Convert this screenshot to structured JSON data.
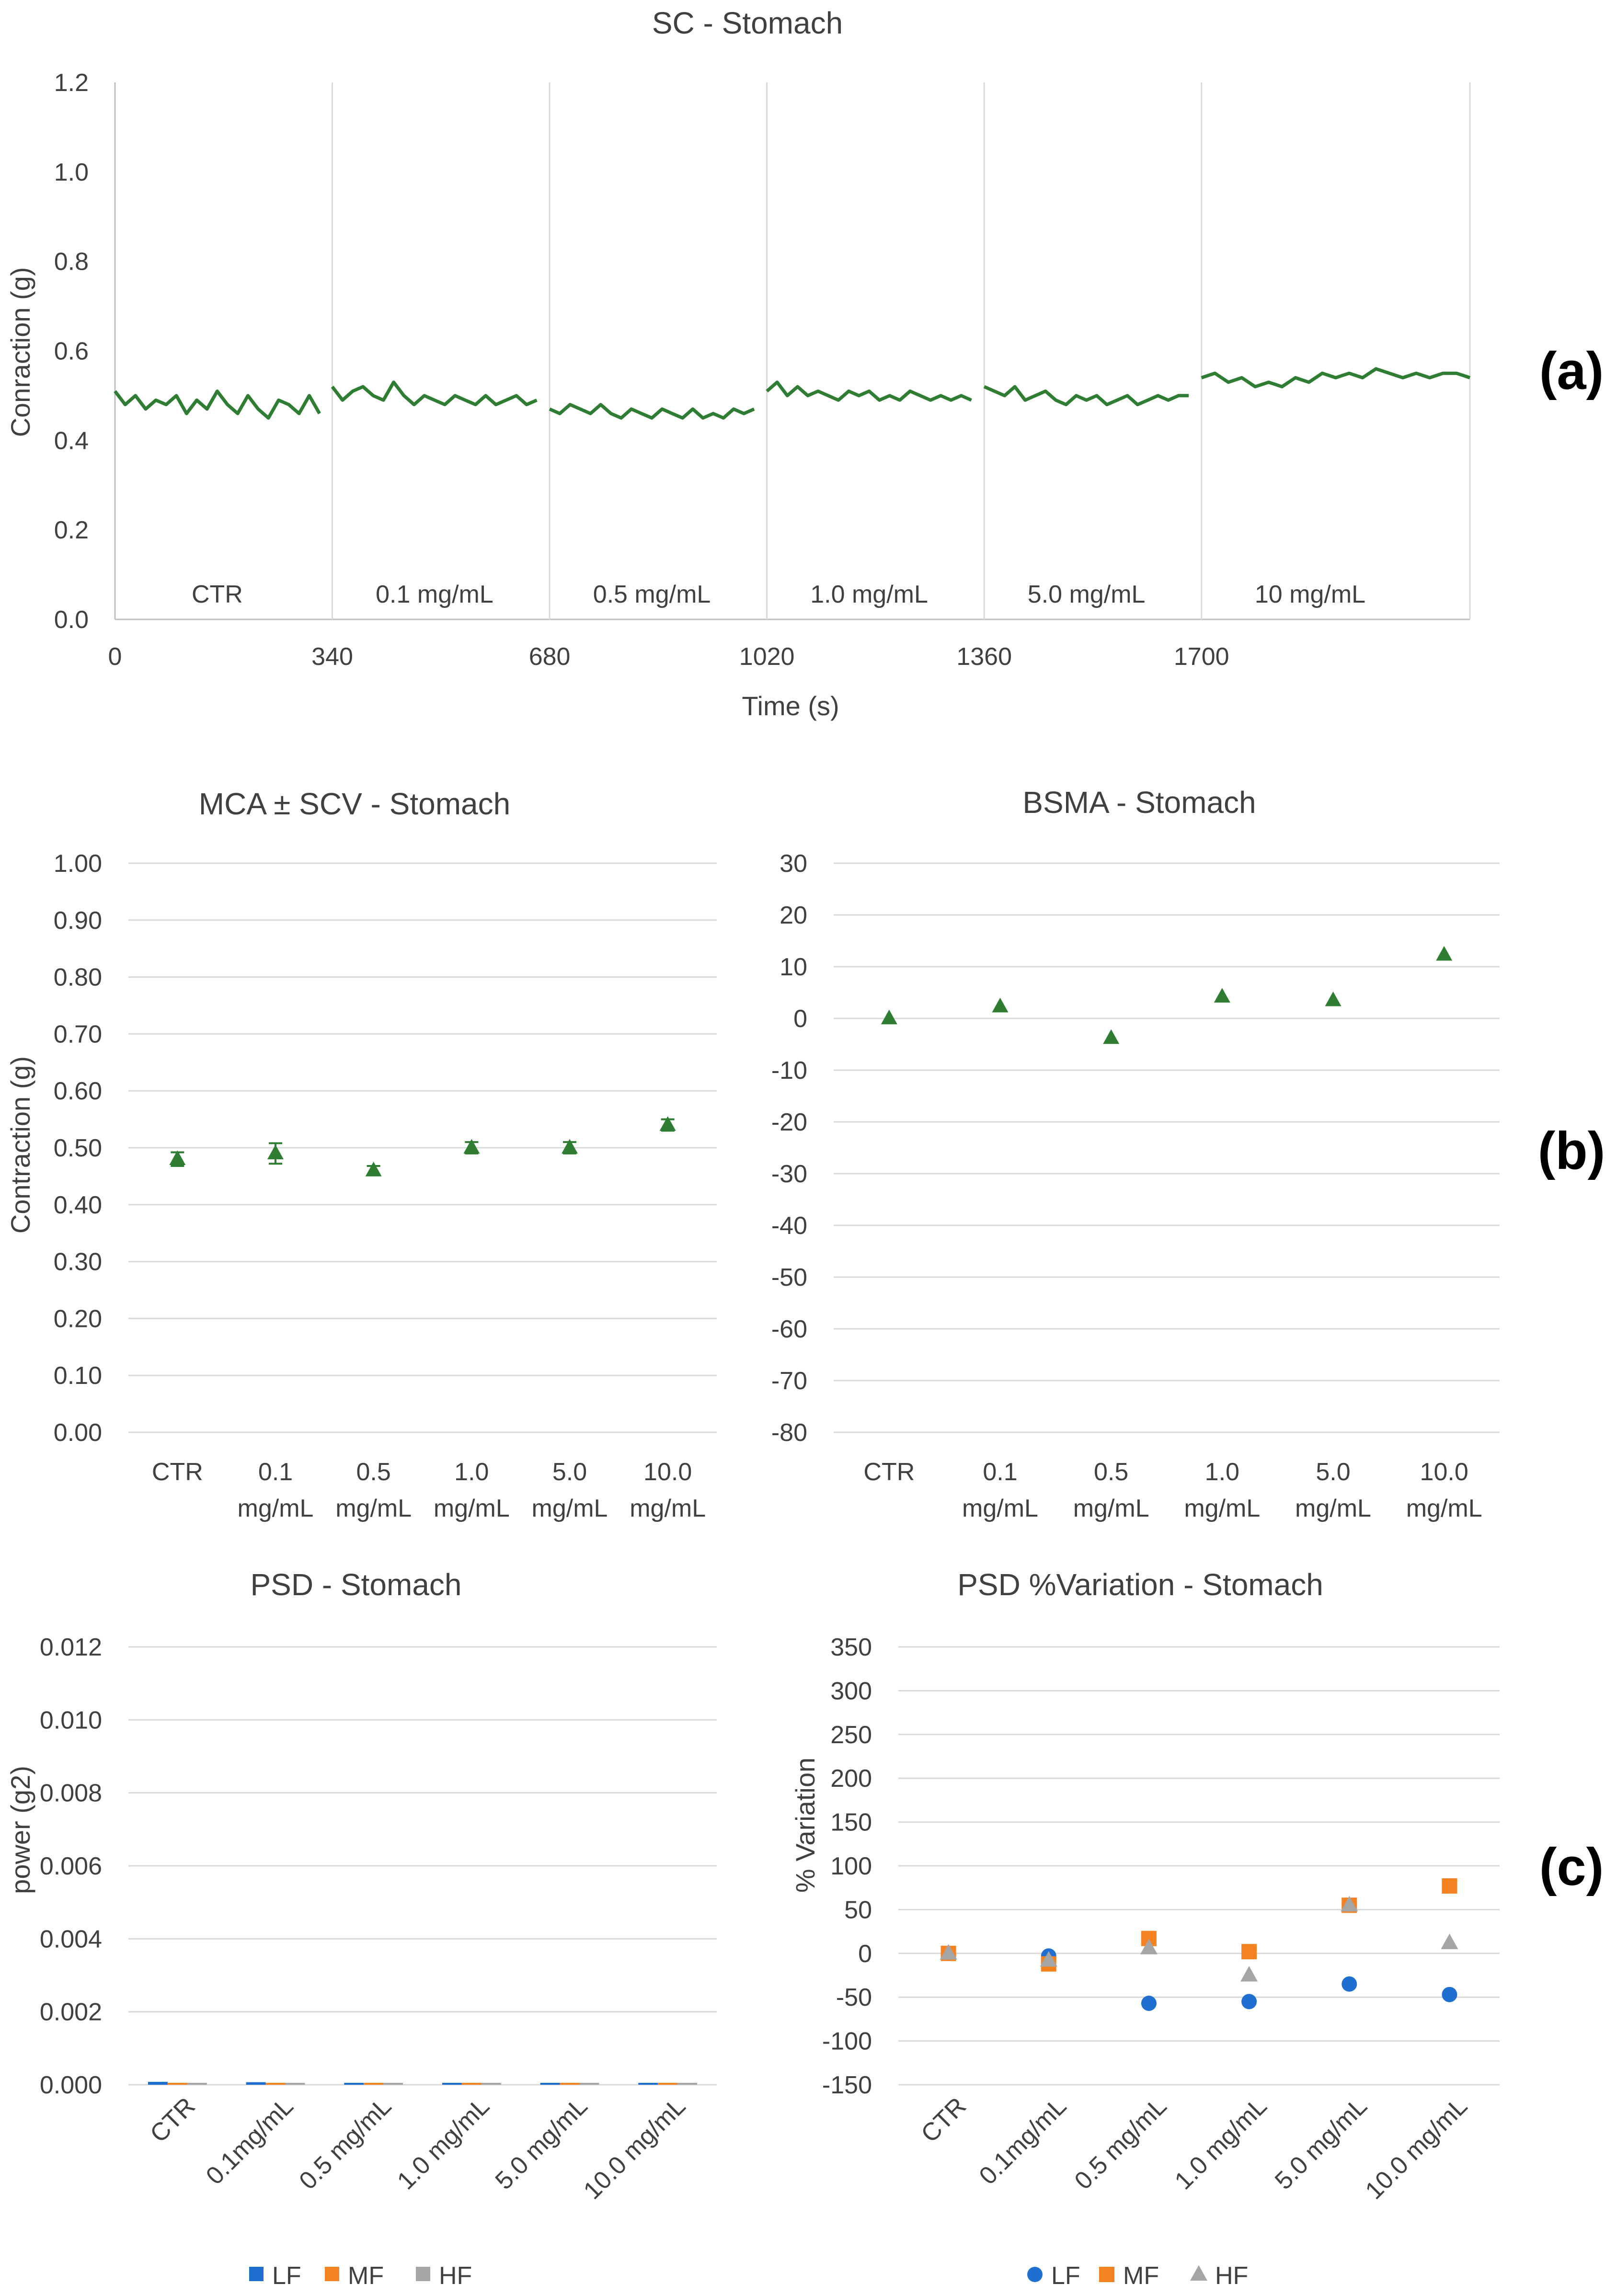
{
  "chart_data": [
    {
      "id": "sc",
      "type": "line",
      "title": "SC - Stomach",
      "xlabel": "Time (s)",
      "ylabel": "Conraction (g)",
      "panel": "(a)",
      "ylim": [
        0,
        1.2
      ],
      "xlim": [
        0,
        2120
      ],
      "y_ticks": [
        "0.0",
        "0.2",
        "0.4",
        "0.6",
        "0.8",
        "1.0",
        "1.2"
      ],
      "x_ticks": [
        "0",
        "340",
        "680",
        "1020",
        "1360",
        "1700"
      ],
      "grid": "vertical separators",
      "segments": [
        {
          "label": "CTR",
          "start": 0,
          "end": 320,
          "values": [
            0.51,
            0.48,
            0.5,
            0.47,
            0.49,
            0.48,
            0.5,
            0.46,
            0.49,
            0.47,
            0.51,
            0.48,
            0.46,
            0.5,
            0.47,
            0.45,
            0.49,
            0.48,
            0.46,
            0.5,
            0.46
          ]
        },
        {
          "label": "0.1 mg/mL",
          "start": 340,
          "end": 660,
          "values": [
            0.52,
            0.49,
            0.51,
            0.52,
            0.5,
            0.49,
            0.53,
            0.5,
            0.48,
            0.5,
            0.49,
            0.48,
            0.5,
            0.49,
            0.48,
            0.5,
            0.48,
            0.49,
            0.5,
            0.48,
            0.49
          ]
        },
        {
          "label": "0.5 mg/mL",
          "start": 680,
          "end": 1000,
          "values": [
            0.47,
            0.46,
            0.48,
            0.47,
            0.46,
            0.48,
            0.46,
            0.45,
            0.47,
            0.46,
            0.45,
            0.47,
            0.46,
            0.45,
            0.47,
            0.45,
            0.46,
            0.45,
            0.47,
            0.46,
            0.47
          ]
        },
        {
          "label": "1.0 mg/mL",
          "start": 1020,
          "end": 1340,
          "values": [
            0.51,
            0.53,
            0.5,
            0.52,
            0.5,
            0.51,
            0.5,
            0.49,
            0.51,
            0.5,
            0.51,
            0.49,
            0.5,
            0.49,
            0.51,
            0.5,
            0.49,
            0.5,
            0.49,
            0.5,
            0.49
          ]
        },
        {
          "label": "5.0 mg/mL",
          "start": 1360,
          "end": 1680,
          "values": [
            0.52,
            0.51,
            0.5,
            0.52,
            0.49,
            0.5,
            0.51,
            0.49,
            0.48,
            0.5,
            0.49,
            0.5,
            0.48,
            0.49,
            0.5,
            0.48,
            0.49,
            0.5,
            0.49,
            0.5,
            0.5
          ]
        },
        {
          "label": "10 mg/mL",
          "start": 1700,
          "end": 2120,
          "values": [
            0.54,
            0.55,
            0.53,
            0.54,
            0.52,
            0.53,
            0.52,
            0.54,
            0.53,
            0.55,
            0.54,
            0.55,
            0.54,
            0.56,
            0.55,
            0.54,
            0.55,
            0.54,
            0.55,
            0.55,
            0.54
          ]
        }
      ],
      "color": "#2e7d32"
    },
    {
      "id": "mca",
      "type": "scatter",
      "title": "MCA ± SCV - Stomach",
      "ylabel": "Contraction (g)",
      "panel": "(b)",
      "ylim": [
        0,
        1
      ],
      "y_ticks": [
        "0.00",
        "0.10",
        "0.20",
        "0.30",
        "0.40",
        "0.50",
        "0.60",
        "0.70",
        "0.80",
        "0.90",
        "1.00"
      ],
      "categories": [
        "CTR",
        "0.1\nmg/mL",
        "0.5\nmg/mL",
        "1.0\nmg/mL",
        "5.0\nmg/mL",
        "10.0\nmg/mL"
      ],
      "values": [
        0.48,
        0.49,
        0.46,
        0.5,
        0.5,
        0.54
      ],
      "errors": [
        0.012,
        0.018,
        0.008,
        0.01,
        0.01,
        0.01
      ],
      "marker": "triangle",
      "color": "#2e7d32"
    },
    {
      "id": "bsma",
      "type": "scatter",
      "title": "BSMA - Stomach",
      "ylabel": "",
      "ylim": [
        -80,
        30
      ],
      "y_ticks": [
        "-80",
        "-70",
        "-60",
        "-50",
        "-40",
        "-30",
        "-20",
        "-10",
        "0",
        "10",
        "20",
        "30"
      ],
      "categories": [
        "CTR",
        "0.1\nmg/mL",
        "0.5\nmg/mL",
        "1.0\nmg/mL",
        "5.0\nmg/mL",
        "10.0\nmg/mL"
      ],
      "values": [
        0,
        2.3,
        -3.8,
        4.2,
        3.5,
        12.3
      ],
      "marker": "triangle",
      "color": "#2e7d32"
    },
    {
      "id": "psd",
      "type": "bar",
      "title": "PSD - Stomach",
      "ylabel": "power (g2)",
      "panel": "(c)",
      "ylim": [
        0,
        0.012
      ],
      "y_ticks": [
        "0.000",
        "0.002",
        "0.004",
        "0.006",
        "0.008",
        "0.010",
        "0.012"
      ],
      "categories": [
        "CTR",
        "0.1mg/mL",
        "0.5 mg/mL",
        "1.0 mg/mL",
        "5.0 mg/mL",
        "10.0 mg/mL"
      ],
      "series": [
        {
          "name": "LF",
          "color": "#1f6fd1",
          "values": [
            8e-05,
            7e-05,
            3e-05,
            2e-05,
            4e-05,
            3e-05
          ]
        },
        {
          "name": "MF",
          "color": "#f58220",
          "values": [
            1e-05,
            1e-05,
            1e-05,
            1e-05,
            1e-05,
            1e-05
          ]
        },
        {
          "name": "HF",
          "color": "#a5a5a5",
          "values": [
            5e-06,
            5e-06,
            5e-06,
            4e-06,
            6e-06,
            5e-06
          ]
        }
      ]
    },
    {
      "id": "psdvar",
      "type": "scatter",
      "title": "PSD %Variation - Stomach",
      "ylabel": "% Variation",
      "ylim": [
        -150,
        350
      ],
      "y_ticks": [
        "-150",
        "-100",
        "-50",
        "0",
        "50",
        "100",
        "150",
        "200",
        "250",
        "300",
        "350"
      ],
      "categories": [
        "CTR",
        "0.1mg/mL",
        "0.5 mg/mL",
        "1.0 mg/mL",
        "5.0 mg/mL",
        "10.0 mg/mL"
      ],
      "series": [
        {
          "name": "LF",
          "marker": "circle",
          "color": "#1f6fd1",
          "values": [
            0,
            -3,
            -57,
            -55,
            -35,
            -47
          ]
        },
        {
          "name": "MF",
          "marker": "square",
          "color": "#f58220",
          "values": [
            0,
            -12,
            17,
            2,
            55,
            77
          ]
        },
        {
          "name": "HF",
          "marker": "triangle",
          "color": "#a5a5a5",
          "values": [
            0,
            -8,
            6,
            -25,
            55,
            12
          ]
        }
      ]
    }
  ]
}
